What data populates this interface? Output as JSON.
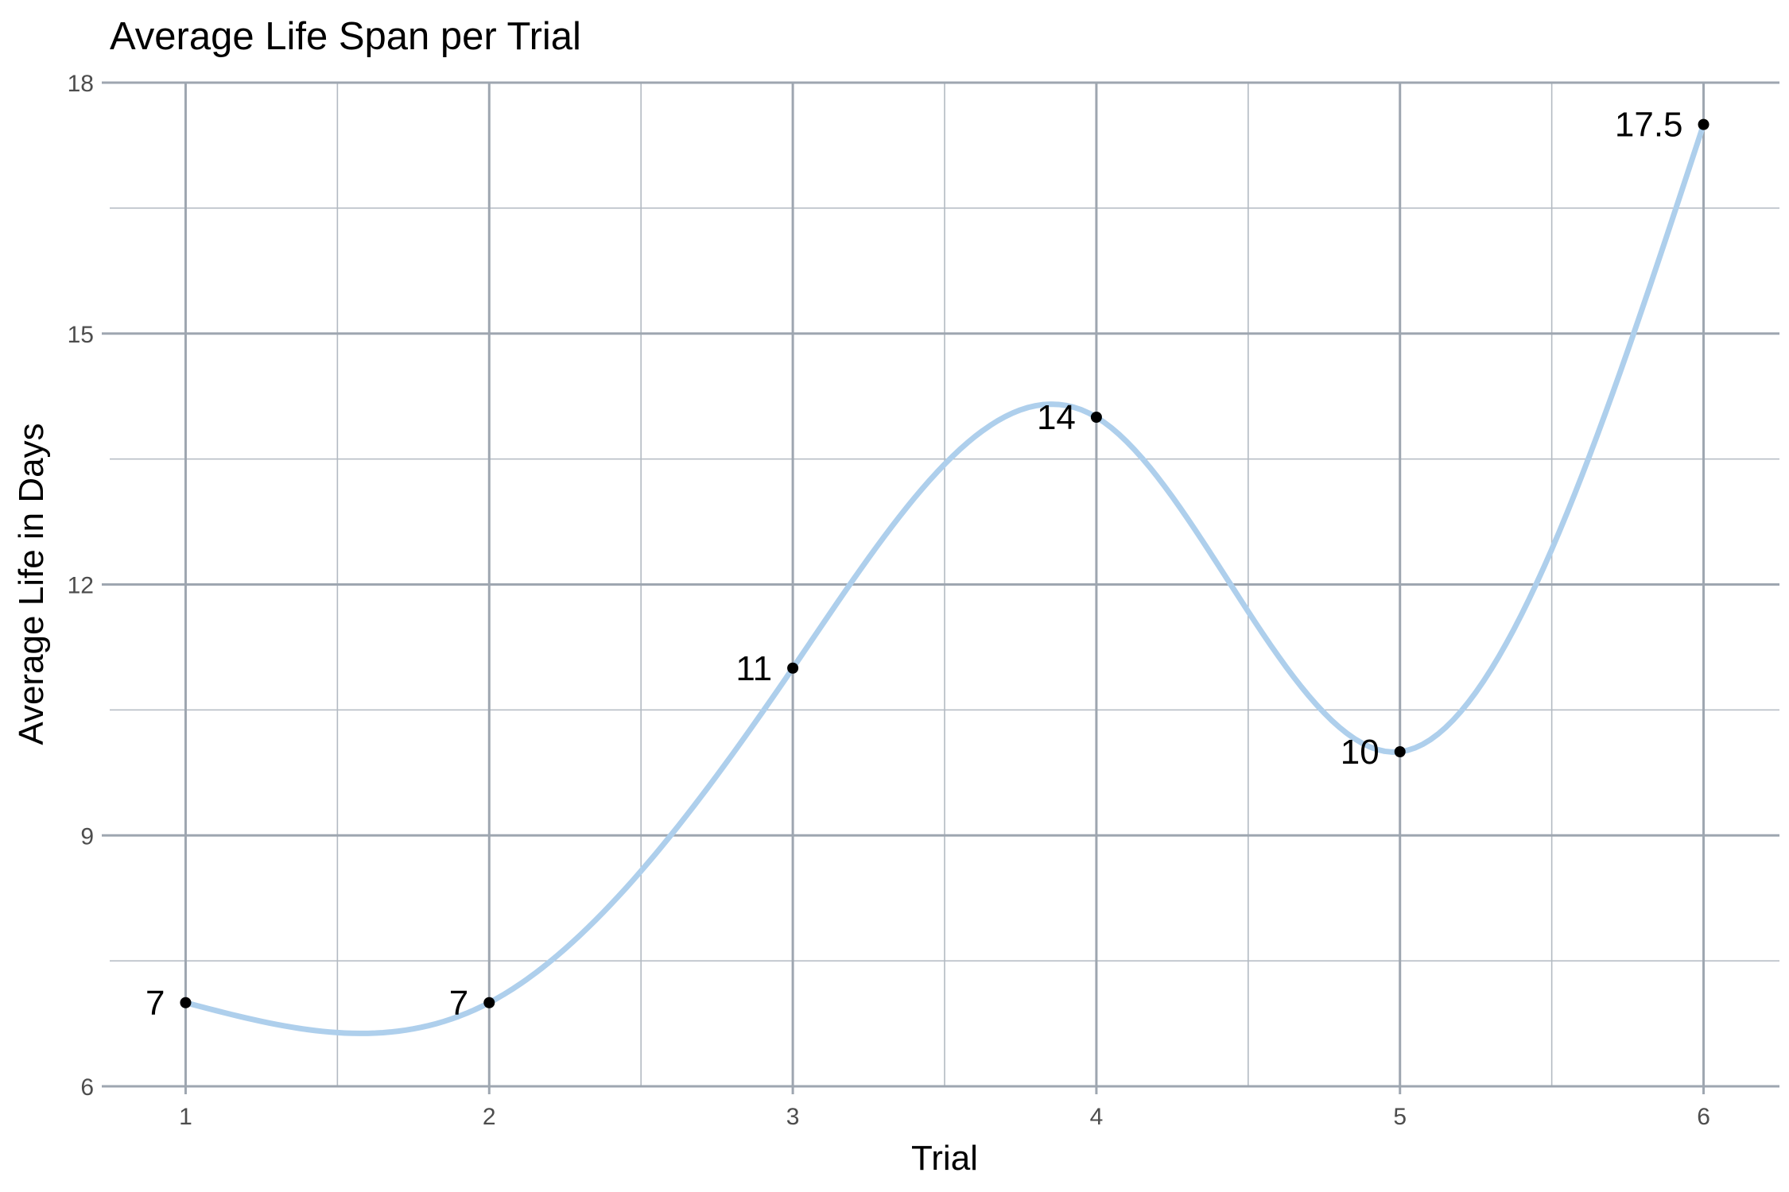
{
  "chart_data": {
    "type": "line",
    "title": "Average Life Span per Trial",
    "xlabel": "Trial",
    "ylabel": "Average Life in Days",
    "x": [
      1,
      2,
      3,
      4,
      5,
      6
    ],
    "series": [
      {
        "values": [
          7,
          7,
          11,
          14,
          10,
          17.5
        ]
      }
    ],
    "data_labels": [
      "7",
      "7",
      "11",
      "14",
      "10",
      "17.5"
    ],
    "xlim": [
      0.75,
      6.25
    ],
    "ylim": [
      6,
      18
    ],
    "x_ticks": [
      "1",
      "2",
      "3",
      "4",
      "5",
      "6"
    ],
    "y_ticks": [
      "6",
      "9",
      "12",
      "15",
      "18"
    ],
    "grid": true,
    "line_smoothed": true,
    "line_color": "#aecfec",
    "point_color": "#000000"
  }
}
